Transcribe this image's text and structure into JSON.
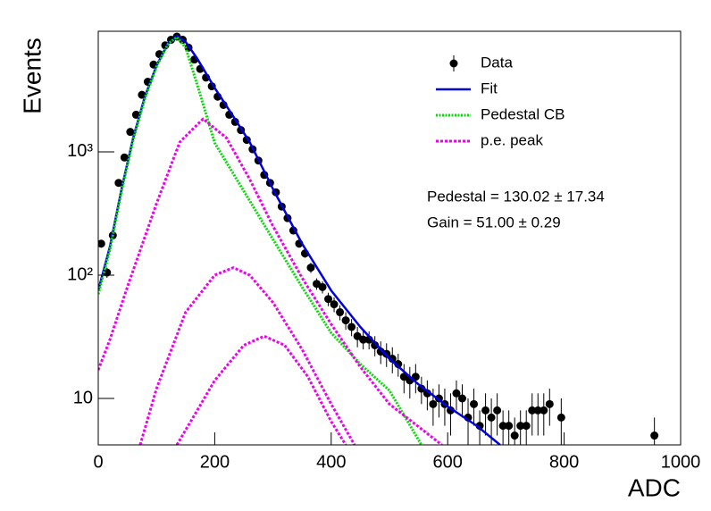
{
  "chart_data": {
    "type": "scatter",
    "xlabel": "ADC",
    "ylabel": "Events",
    "xlim": [
      0,
      1000
    ],
    "xticks": [
      0,
      200,
      400,
      600,
      800,
      1000
    ],
    "ylim": [
      4.2,
      9500
    ],
    "yticks": [
      10,
      {
        "value": 100,
        "label": "10²"
      },
      {
        "value": 1000,
        "label": "10³"
      }
    ],
    "log_y": true,
    "legend": "upper right",
    "annotations": [
      "Pedestal = 130.02 ± 17.34",
      "Gain = 51.00 ± 0.29"
    ],
    "series": [
      {
        "name": "Data",
        "color": "#000000",
        "kind": "points",
        "x": [
          5,
          15,
          25,
          35,
          45,
          55,
          65,
          75,
          85,
          95,
          105,
          115,
          125,
          135,
          145,
          155,
          165,
          175,
          185,
          195,
          205,
          215,
          225,
          235,
          245,
          255,
          265,
          275,
          285,
          295,
          305,
          315,
          325,
          335,
          345,
          355,
          365,
          375,
          385,
          395,
          405,
          415,
          425,
          435,
          445,
          455,
          465,
          475,
          485,
          495,
          505,
          515,
          525,
          535,
          545,
          555,
          565,
          575,
          585,
          595,
          605,
          615,
          625,
          635,
          645,
          655,
          665,
          675,
          685,
          695,
          705,
          715,
          725,
          735,
          745,
          755,
          765,
          775,
          795,
          955
        ],
        "values": [
          180,
          105,
          210,
          560,
          900,
          1450,
          2000,
          2900,
          3700,
          5100,
          6200,
          7300,
          8100,
          8600,
          8100,
          7000,
          5600,
          4700,
          4000,
          3400,
          2800,
          2400,
          2000,
          1750,
          1500,
          1250,
          1050,
          850,
          650,
          560,
          470,
          360,
          290,
          230,
          180,
          150,
          115,
          85,
          80,
          64,
          58,
          50,
          43,
          38,
          32,
          30,
          30,
          27,
          24,
          23,
          21,
          19,
          15,
          14,
          15,
          12,
          11,
          9,
          10,
          9,
          8,
          11,
          10,
          7,
          9,
          6,
          8,
          7,
          8,
          6,
          6,
          5,
          6,
          6,
          8,
          8,
          8,
          9,
          7,
          5
        ],
        "errors": [
          13,
          10,
          14,
          24,
          30,
          38,
          45,
          54,
          61,
          71,
          79,
          85,
          90,
          93,
          90,
          84,
          75,
          69,
          63,
          58,
          53,
          49,
          45,
          42,
          39,
          35,
          32,
          29,
          25,
          24,
          22,
          19,
          17,
          15,
          13,
          12,
          11,
          9,
          9,
          8,
          8,
          7,
          7,
          6,
          6,
          5,
          5,
          5,
          5,
          5,
          5,
          4,
          4,
          4,
          4,
          3,
          3,
          3,
          3,
          3,
          3,
          3,
          3,
          3,
          3,
          2,
          3,
          3,
          3,
          2,
          2,
          2,
          2,
          2,
          3,
          3,
          3,
          3,
          3,
          2
        ]
      },
      {
        "name": "Fit",
        "color": "#0000dd",
        "kind": "solid",
        "curves": [
          {
            "x": [
              0,
              20,
              40,
              60,
              80,
              100,
              120,
              135,
              150,
              170,
              200,
              230,
              260,
              300,
              350,
              400,
              450,
              500,
              550,
              600,
              650,
              690
            ],
            "values": [
              75,
              170,
              500,
              1300,
              2800,
              5000,
              7600,
              8700,
              7800,
              5700,
              3300,
              2000,
              1200,
              500,
              180,
              75,
              38,
              21,
              13,
              8.6,
              6,
              4.2
            ]
          }
        ]
      },
      {
        "name": "Pedestal CB",
        "color": "#00dd00",
        "kind": "dotted",
        "curves": [
          {
            "x": [
              0,
              20,
              40,
              60,
              80,
              100,
              120,
              135,
              150,
              170,
              200,
              250,
              300,
              350,
              400,
              450,
              500,
              555
            ],
            "values": [
              70,
              160,
              480,
              1250,
              2700,
              4900,
              7500,
              8500,
              7000,
              3500,
              1180,
              480,
              195,
              80,
              34,
              19,
              11.6,
              4.2
            ]
          }
        ]
      },
      {
        "name": "p.e. peak",
        "color": "#ee00ee",
        "kind": "dashed",
        "curves": [
          {
            "x": [
              0,
              20,
              50,
              100,
              140,
              180,
              220,
              260,
              300,
              350,
              400,
              450,
              500,
              590
            ],
            "values": [
              17,
              30,
              80,
              380,
              1200,
              1850,
              1300,
              600,
              250,
              95,
              40,
              18,
              9,
              4.2
            ]
          },
          {
            "x": [
              72,
              100,
              150,
              200,
              232,
              260,
              300,
              350,
              400,
              440
            ],
            "values": [
              4.2,
              12,
              50,
              100,
              115,
              100,
              60,
              25,
              9,
              4.2
            ]
          },
          {
            "x": [
              135,
              170,
              200,
              250,
              285,
              320,
              360,
              400,
              425
            ],
            "values": [
              4.2,
              8,
              14,
              27,
              32,
              27,
              15,
              6.5,
              4.2
            ]
          }
        ]
      }
    ]
  }
}
